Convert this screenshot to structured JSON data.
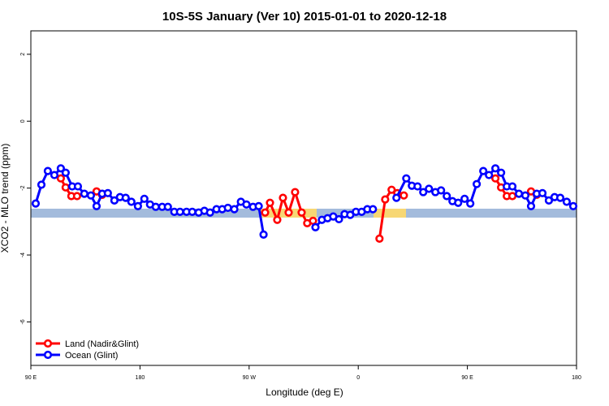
{
  "chart_data": {
    "type": "line",
    "title": "10S-5S January (Ver 10)   2015-01-01 to 2020-12-18",
    "x_label": "Longitude (deg E)",
    "y_label": "XCO2 - MLO trend (ppm)",
    "xlim": [
      90,
      540
    ],
    "ylim": [
      -7.3,
      2.7
    ],
    "xticks": [
      {
        "value": 90,
        "label": "90 E"
      },
      180,
      {
        "value": 270,
        "label": "90 W"
      },
      {
        "value": 360,
        "label": "0"
      },
      {
        "value": 450,
        "label": "90 E"
      },
      {
        "value": 540,
        "label": "180"
      }
    ],
    "yticks": [
      2,
      0,
      -2,
      -4,
      -6
    ],
    "legend": "bottom-left",
    "series": [
      {
        "name": "Land (Nadir&Glint)",
        "color": "#ff0000",
        "x": [
          114.7,
          118.7,
          123.4,
          128.1,
          null,
          144.2,
          148.8,
          null,
          283.2,
          287.2,
          293.2,
          297.9,
          302.6,
          307.9,
          313.3,
          317.9,
          322.7,
          null,
          377.5,
          382.2,
          387.5,
          392.2,
          397.6,
          null,
          473.1,
          477.8,
          482.5,
          487.1,
          null,
          502.5,
          507.2
        ],
        "values": [
          -1.71,
          -1.98,
          -2.24,
          -2.24,
          null,
          -2.1,
          -2.2,
          null,
          -2.73,
          -2.44,
          -2.95,
          -2.29,
          -2.73,
          -2.12,
          -2.73,
          -3.05,
          -2.98,
          null,
          -3.51,
          -2.34,
          -2.05,
          -2.15,
          -2.22,
          null,
          -1.71,
          -1.98,
          -2.24,
          -2.24,
          null,
          -2.1,
          -2.2
        ]
      },
      {
        "name": "Ocean (Glint)",
        "color": "#0000ff",
        "x": [
          94.0,
          98.7,
          104.0,
          109.4,
          114.7,
          118.7,
          124.1,
          128.8,
          134.1,
          139.5,
          144.2,
          148.8,
          153.5,
          158.9,
          163.5,
          168.2,
          172.9,
          178.3,
          183.6,
          188.3,
          193.0,
          198.3,
          203.0,
          208.3,
          213.0,
          218.4,
          223.1,
          228.4,
          233.1,
          237.8,
          243.1,
          247.8,
          252.5,
          257.8,
          263.2,
          267.8,
          273.2,
          277.9,
          281.9,
          null,
          324.7,
          330.0,
          334.7,
          339.4,
          344.1,
          348.7,
          353.4,
          358.1,
          362.8,
          367.5,
          372.1,
          null,
          391.5,
          399.6,
          404.2,
          408.9,
          413.6,
          418.3,
          423.6,
          428.3,
          433.0,
          437.7,
          442.4,
          447.7,
          452.4,
          457.7,
          463.1,
          467.8,
          473.1,
          477.8,
          482.5,
          487.1,
          492.5,
          497.8,
          502.5,
          507.2,
          511.9,
          517.2,
          521.9,
          526.6,
          531.9,
          537.3
        ],
        "values": [
          -2.46,
          -1.9,
          -1.49,
          -1.61,
          -1.41,
          -1.54,
          -1.95,
          -1.95,
          -2.17,
          -2.22,
          -2.54,
          -2.17,
          -2.15,
          -2.37,
          -2.27,
          -2.29,
          -2.41,
          -2.54,
          -2.32,
          -2.49,
          -2.56,
          -2.56,
          -2.56,
          -2.71,
          -2.71,
          -2.71,
          -2.71,
          -2.73,
          -2.68,
          -2.73,
          -2.63,
          -2.63,
          -2.59,
          -2.63,
          -2.41,
          -2.49,
          -2.56,
          -2.54,
          -3.39,
          null,
          -3.17,
          -2.95,
          -2.9,
          -2.85,
          -2.93,
          -2.78,
          -2.8,
          -2.71,
          -2.71,
          -2.63,
          -2.63,
          null,
          -2.29,
          -1.71,
          -1.93,
          -1.95,
          -2.12,
          -2.02,
          -2.12,
          -2.07,
          -2.24,
          -2.39,
          -2.44,
          -2.32,
          -2.46,
          -1.88,
          -1.49,
          -1.61,
          -1.41,
          -1.54,
          -1.95,
          -1.95,
          -2.17,
          -2.22,
          -2.54,
          -2.17,
          -2.15,
          -2.37,
          -2.27,
          -2.29,
          -2.41,
          -2.54
        ]
      }
    ]
  }
}
